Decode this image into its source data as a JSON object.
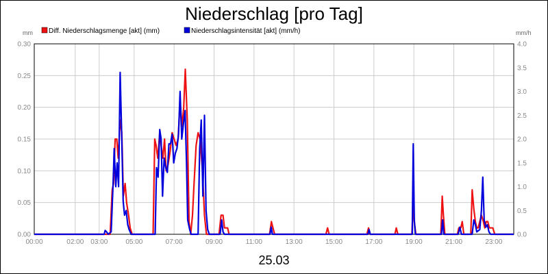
{
  "chart_data": {
    "type": "line",
    "title": "Niederschlag [pro Tag]",
    "xlabel": "25.03",
    "y_left_label": "mm",
    "y_right_label": "mm/h",
    "ylim_left": [
      0,
      0.3
    ],
    "ylim_right": [
      0,
      4.0
    ],
    "yticks_left": [
      "0.00",
      "0.05",
      "0.10",
      "0.15",
      "0.20",
      "0.25",
      "0.30"
    ],
    "yticks_right": [
      "0.0",
      "0.5",
      "1.0",
      "1.5",
      "2.0",
      "2.5",
      "3.0",
      "3.5",
      "4.0"
    ],
    "xlim_hours": [
      0,
      24
    ],
    "xticks": [
      {
        "h": 0,
        "label": "00:00"
      },
      {
        "h": 2.05,
        "label": "02:00"
      },
      {
        "h": 3.25,
        "label": "03:00"
      },
      {
        "h": 5,
        "label": "05:00"
      },
      {
        "h": 7,
        "label": "07:00"
      },
      {
        "h": 9,
        "label": "09:00"
      },
      {
        "h": 11,
        "label": "11:00"
      },
      {
        "h": 13,
        "label": "13:00"
      },
      {
        "h": 15,
        "label": "15:00"
      },
      {
        "h": 17,
        "label": "17:00"
      },
      {
        "h": 19,
        "label": "19:00"
      },
      {
        "h": 21,
        "label": "21:00"
      },
      {
        "h": 23,
        "label": "23:00"
      }
    ],
    "grid": true,
    "legend_position": "top-left",
    "series": [
      {
        "name": "Diff. Niederschlagsmenge [akt] (mm)",
        "axis": "left",
        "color": "#ee1111",
        "x": [
          0,
          3.8,
          3.9,
          3.97,
          4.05,
          4.13,
          4.2,
          4.3,
          4.38,
          4.46,
          4.55,
          4.62,
          4.72,
          4.8,
          4.9,
          5.0,
          5.1,
          5.95,
          6.03,
          6.1,
          6.18,
          6.28,
          6.35,
          6.44,
          6.52,
          6.6,
          6.7,
          6.8,
          6.9,
          7.0,
          7.1,
          7.2,
          7.3,
          7.4,
          7.48,
          7.56,
          7.66,
          7.75,
          7.83,
          7.92,
          8.0,
          8.1,
          8.2,
          8.3,
          8.42,
          8.52,
          8.62,
          9.25,
          9.35,
          9.45,
          9.52,
          9.58,
          9.68,
          9.75,
          11.78,
          11.87,
          11.95,
          12.03,
          14.6,
          14.68,
          14.76,
          16.65,
          16.73,
          16.8,
          18.05,
          18.12,
          18.2,
          18.9,
          18.97,
          19.02,
          19.1,
          20.35,
          20.42,
          20.48,
          20.55,
          21.18,
          21.25,
          21.35,
          21.42,
          21.5,
          21.85,
          21.92,
          22.0,
          22.08,
          22.15,
          22.22,
          22.3,
          22.38,
          22.48,
          22.55,
          22.62,
          22.7,
          22.78,
          22.88,
          22.95,
          23.05,
          24
        ],
        "values": [
          0,
          0,
          0.07,
          0.08,
          0.15,
          0.15,
          0.12,
          0.18,
          0.16,
          0.06,
          0.08,
          0.05,
          0.03,
          0.01,
          0,
          0,
          0,
          0,
          0.15,
          0.14,
          0.12,
          0.16,
          0.14,
          0.12,
          0.15,
          0.1,
          0.11,
          0.13,
          0.16,
          0.15,
          0.14,
          0.15,
          0.21,
          0.17,
          0.2,
          0.26,
          0.18,
          0.02,
          0,
          0.03,
          0.08,
          0.14,
          0.16,
          0.15,
          0.1,
          0.03,
          0,
          0,
          0.03,
          0.03,
          0.01,
          0.01,
          0.01,
          0,
          0,
          0.02,
          0.01,
          0,
          0,
          0.01,
          0,
          0,
          0.01,
          0,
          0,
          0.01,
          0,
          0,
          0.05,
          0.02,
          0,
          0,
          0.06,
          0.03,
          0,
          0,
          0.01,
          0.01,
          0.02,
          0,
          0,
          0.07,
          0.04,
          0.02,
          0.01,
          0.01,
          0.02,
          0.03,
          0.02,
          0.01,
          0.02,
          0.02,
          0.01,
          0.01,
          0.01,
          0,
          0
        ]
      },
      {
        "name": "Niederschlagsintensität [akt] (mm/h)",
        "axis": "right",
        "color": "#0000dd",
        "x": [
          0,
          3.5,
          3.55,
          3.62,
          3.7,
          3.85,
          3.95,
          4.0,
          4.08,
          4.15,
          4.22,
          4.3,
          4.38,
          4.45,
          4.52,
          4.6,
          4.68,
          4.75,
          4.85,
          4.95,
          6.05,
          6.12,
          6.2,
          6.28,
          6.35,
          6.42,
          6.5,
          6.58,
          6.66,
          6.74,
          6.82,
          6.9,
          6.98,
          7.06,
          7.14,
          7.22,
          7.3,
          7.38,
          7.46,
          7.55,
          7.62,
          7.68,
          7.78,
          7.85,
          8.2,
          8.28,
          8.36,
          8.44,
          8.52,
          8.6,
          8.68,
          8.76,
          9.3,
          9.38,
          9.45,
          9.52,
          11.8,
          11.86,
          11.92,
          16.7,
          16.76,
          16.82,
          18.92,
          18.97,
          19.02,
          19.08,
          20.38,
          20.44,
          20.5,
          21.22,
          21.3,
          21.38,
          21.92,
          22.0,
          22.08,
          22.15,
          22.3,
          22.38,
          22.45,
          22.52,
          22.6,
          22.68,
          22.76,
          22.84,
          24
        ],
        "values": [
          0,
          0,
          0.08,
          0.05,
          0,
          0.05,
          1.1,
          1.8,
          1.0,
          1.5,
          1.0,
          3.4,
          2.0,
          0.7,
          0.4,
          0.5,
          0.2,
          0.1,
          0,
          0,
          0,
          1.4,
          1.2,
          2.2,
          2.0,
          0.8,
          1.6,
          1.4,
          1.3,
          1.9,
          1.9,
          2.1,
          1.5,
          1.7,
          1.8,
          2.1,
          3.0,
          2.0,
          2.3,
          2.6,
          1.5,
          0.3,
          0.1,
          0,
          0,
          1.8,
          2.4,
          0.8,
          2.5,
          0.5,
          0.1,
          0,
          0,
          0.3,
          0.05,
          0,
          0,
          0.15,
          0,
          0,
          0.1,
          0,
          0,
          1.9,
          0.3,
          0,
          0,
          0.3,
          0,
          0,
          0.15,
          0,
          0,
          0.3,
          0.2,
          0.05,
          0.1,
          0.5,
          1.2,
          0.3,
          0.15,
          0.2,
          0.05,
          0,
          0
        ]
      }
    ]
  }
}
